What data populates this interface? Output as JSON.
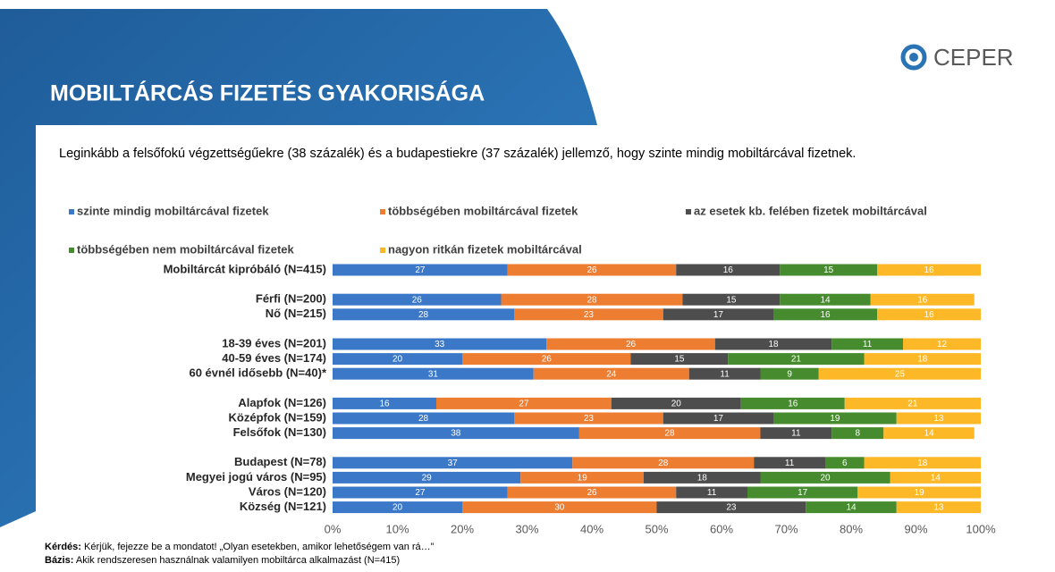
{
  "header": {
    "title": "MOBILTÁRCÁS FIZETÉS GYAKORISÁGA",
    "logo": "CEPER"
  },
  "description": "Leginkább a felsőfokú végzettségűekre (38 százalék) és a budapestiekre (37 százalék) jellemző, hogy szinte mindig mobiltárcával fizetnek.",
  "footnotes": {
    "question_label": "Kérdés:",
    "question": " Kérjük, fejezze be a mondatot! „Olyan esetekben, amikor lehetőségem van rá…”",
    "base_label": "Bázis:",
    "base": " Akik rendszeresen használnak valamilyen mobiltárca alkalmazást (N=415)"
  },
  "chart_data": {
    "type": "stacked_bar_horizontal",
    "categories": [
      "Mobiltárcát kipróbáló (N=415)",
      null,
      "Férfi (N=200)",
      "Nő (N=215)",
      null,
      "18-39 éves  (N=201)",
      "40-59 éves  (N=174)",
      "60 évnél idősebb  (N=40)*",
      null,
      "Alapfok (N=126)",
      "Középfok (N=159)",
      "Felsőfok (N=130)",
      null,
      "Budapest (N=78)",
      "Megyei jogú város (N=95)",
      "Város (N=120)",
      "Község (N=121)"
    ],
    "series": [
      {
        "name": "szinte mindig mobiltárcával fizetek",
        "color": "#3b78c8",
        "values": [
          27,
          null,
          26,
          28,
          null,
          33,
          20,
          31,
          null,
          16,
          28,
          38,
          null,
          37,
          29,
          27,
          20
        ]
      },
      {
        "name": "többségében mobiltárcával fizetek",
        "color": "#ed7d31",
        "values": [
          26,
          null,
          28,
          23,
          null,
          26,
          26,
          24,
          null,
          27,
          23,
          28,
          null,
          28,
          19,
          26,
          30
        ]
      },
      {
        "name": "az esetek kb. felében fizetek mobiltárcával",
        "color": "#4d4d4d",
        "values": [
          16,
          null,
          15,
          17,
          null,
          18,
          15,
          11,
          null,
          20,
          17,
          11,
          null,
          11,
          18,
          11,
          23
        ]
      },
      {
        "name": "többségében nem mobiltárcával fizetek",
        "color": "#468c2e",
        "values": [
          15,
          null,
          14,
          16,
          null,
          11,
          21,
          9,
          null,
          16,
          19,
          8,
          null,
          6,
          20,
          17,
          14
        ]
      },
      {
        "name": "nagyon ritkán fizetek mobiltárcával",
        "color": "#fdb827",
        "values": [
          16,
          null,
          16,
          16,
          null,
          12,
          18,
          25,
          null,
          21,
          13,
          14,
          null,
          18,
          14,
          19,
          13
        ]
      }
    ],
    "xlim": [
      0,
      100
    ],
    "xticks": [
      {
        "value": 0,
        "label": "0%"
      },
      {
        "value": 10,
        "label": "10%"
      },
      {
        "value": 20,
        "label": "20%"
      },
      {
        "value": 30,
        "label": "30%"
      },
      {
        "value": 40,
        "label": "40%"
      },
      {
        "value": 50,
        "label": "50%"
      },
      {
        "value": 60,
        "label": "60%"
      },
      {
        "value": 70,
        "label": "70%"
      },
      {
        "value": 80,
        "label": "80%"
      },
      {
        "value": 90,
        "label": "90%"
      },
      {
        "value": 100,
        "label": "100%"
      }
    ]
  }
}
